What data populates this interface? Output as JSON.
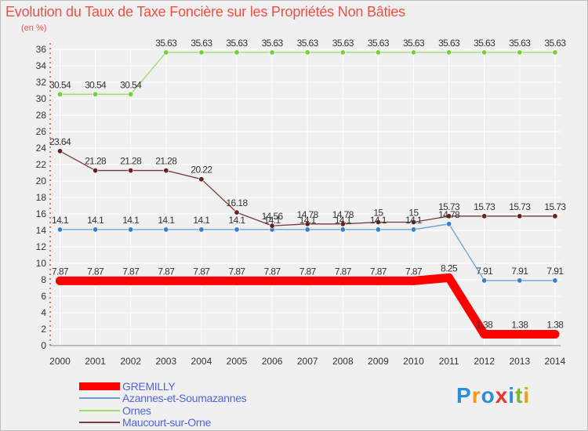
{
  "chart_data": {
    "type": "line",
    "title": "Evolution du Taux de Taxe Foncière sur les Propriétés Non Bâties",
    "unit_label": "(en %)",
    "xlabel": "",
    "ylabel": "",
    "ylim": [
      0,
      36
    ],
    "ytick_step": 2,
    "grid": true,
    "legend_position": "bottom-left",
    "x": [
      "2000",
      "2001",
      "2002",
      "2003",
      "2004",
      "2005",
      "2006",
      "2007",
      "2008",
      "2009",
      "2010",
      "2011",
      "2012",
      "2013",
      "2014"
    ],
    "series": [
      {
        "name": "GREMILLY",
        "color": "#ff0000",
        "marker_color": "#ff0000",
        "emphasis": "thick",
        "values": [
          7.87,
          7.87,
          7.87,
          7.87,
          7.87,
          7.87,
          7.87,
          7.87,
          7.87,
          7.87,
          7.87,
          8.25,
          1.38,
          1.38,
          1.38
        ],
        "labels": [
          "7.87",
          "7.87",
          "7.87",
          "7.87",
          "7.87",
          "7.87",
          "7.87",
          "7.87",
          "7.87",
          "7.87",
          "7.87",
          "8.25",
          "1.38",
          "1.38",
          "1.38"
        ]
      },
      {
        "name": "Azannes-et-Soumazannes",
        "color": "#6aa0d2",
        "marker_color": "#3b7fc4",
        "emphasis": "normal",
        "values": [
          14.1,
          14.1,
          14.1,
          14.1,
          14.1,
          14.1,
          14.1,
          14.1,
          14.1,
          14.1,
          14.1,
          14.78,
          7.91,
          7.91,
          7.91
        ],
        "labels": [
          "14.1",
          "14.1",
          "14.1",
          "14.1",
          "14.1",
          "14.1",
          "14.1",
          "14.1",
          "14.1",
          "14.1",
          "14.1",
          "14.78",
          "7.91",
          "7.91",
          "7.91"
        ]
      },
      {
        "name": "Ornes",
        "color": "#99dd66",
        "marker_color": "#7acc3a",
        "emphasis": "normal",
        "values": [
          30.54,
          30.54,
          30.54,
          35.63,
          35.63,
          35.63,
          35.63,
          35.63,
          35.63,
          35.63,
          35.63,
          35.63,
          35.63,
          35.63,
          35.63
        ],
        "labels": [
          "30.54",
          "30.54",
          "30.54",
          "35.63",
          "35.63",
          "35.63",
          "35.63",
          "35.63",
          "35.63",
          "35.63",
          "35.63",
          "35.63",
          "35.63",
          "35.63",
          "35.63"
        ]
      },
      {
        "name": "Maucourt-sur-Orne",
        "color": "#7a3a3a",
        "marker_color": "#6b2020",
        "emphasis": "normal",
        "values": [
          23.64,
          21.28,
          21.28,
          21.28,
          20.22,
          16.18,
          14.56,
          14.78,
          14.78,
          15,
          15,
          15.73,
          15.73,
          15.73,
          15.73
        ],
        "labels": [
          "23.64",
          "21.28",
          "21.28",
          "21.28",
          "20.22",
          "16.18",
          "14.56",
          "14.78",
          "14.78",
          "15",
          "15",
          "15.73",
          "15.73",
          "15.73",
          "15.73"
        ]
      }
    ]
  },
  "logo": {
    "text": "Proxiti",
    "letters": [
      "P",
      "r",
      "o",
      "x",
      "i",
      "t",
      "i"
    ],
    "colors": [
      "#2a8fd6",
      "#f29a1a",
      "#2a8fd6",
      "#e8332a",
      "#2a8fd6",
      "#79b72e",
      "#f29a1a"
    ]
  }
}
